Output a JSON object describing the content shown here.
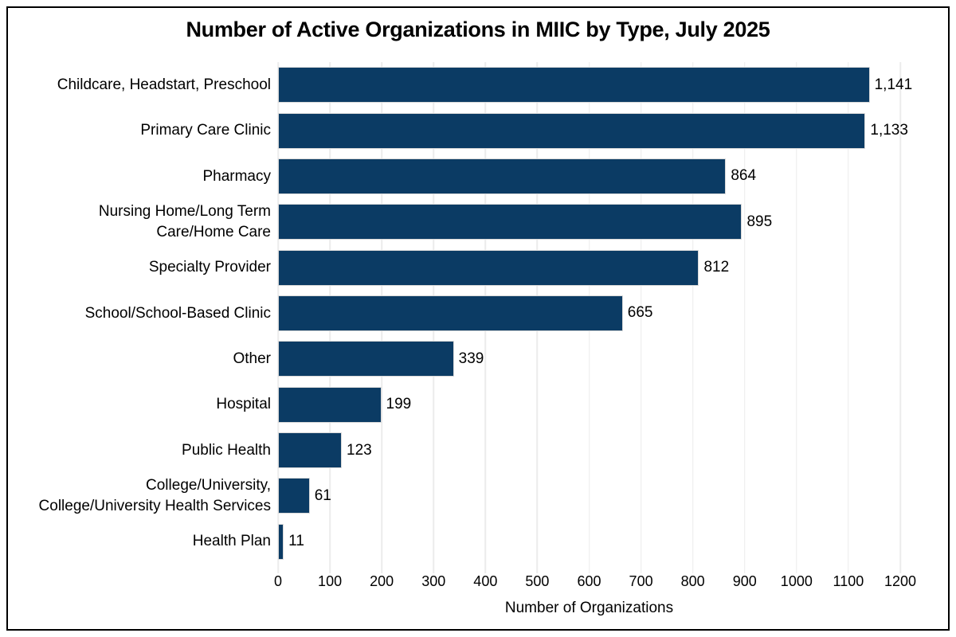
{
  "window": {
    "background": "#ffffff",
    "frame_border_color": "#000000"
  },
  "chart_data": {
    "type": "bar",
    "orientation": "horizontal",
    "title": "Number of Active Organizations in MIIC by Type, July 2025",
    "xlabel": "Number of Organizations",
    "xlim": [
      0,
      1200
    ],
    "xticks": [
      0,
      100,
      200,
      300,
      400,
      500,
      600,
      700,
      800,
      900,
      1000,
      1100,
      1200
    ],
    "grid": "vertical",
    "legend": "none",
    "bar_color": "#0B3B64",
    "bar_border_color": "#D9D9D9",
    "gridline_color": "#ECECEC",
    "categories": [
      "Childcare, Headstart, Preschool",
      "Primary Care Clinic",
      "Pharmacy",
      "Nursing Home/Long Term\nCare/Home Care",
      "Specialty Provider",
      "School/School-Based Clinic",
      "Other",
      "Hospital",
      "Public Health",
      "College/University,\nCollege/University Health Services",
      "Health Plan"
    ],
    "values": [
      1141,
      1133,
      864,
      895,
      812,
      665,
      339,
      199,
      123,
      61,
      11
    ],
    "value_labels": [
      "1,141",
      "1,133",
      "864",
      "895",
      "812",
      "665",
      "339",
      "199",
      "123",
      "61",
      "11"
    ]
  }
}
